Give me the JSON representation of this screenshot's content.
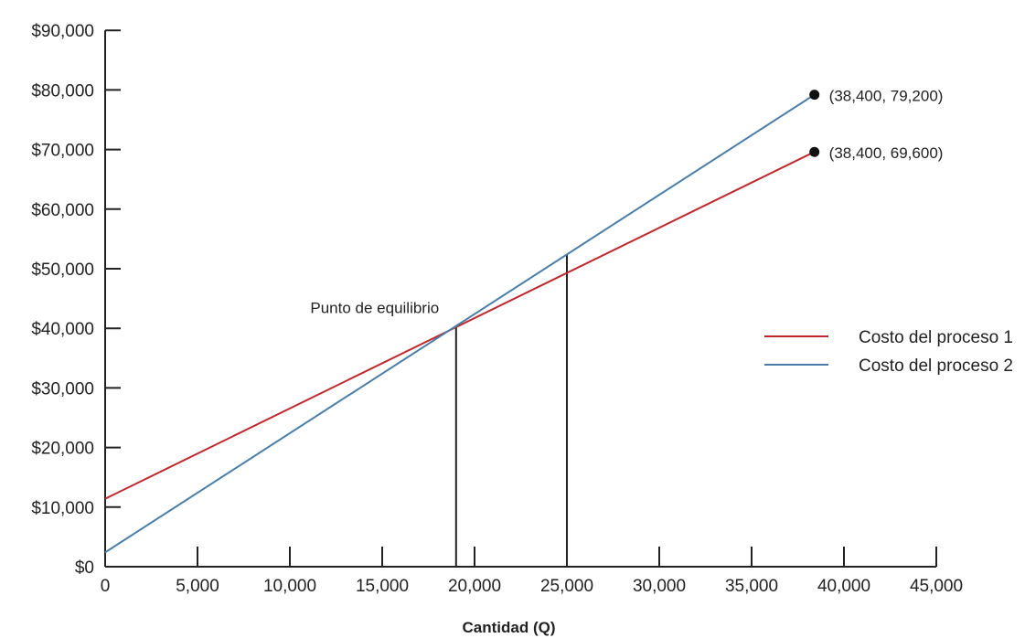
{
  "chart_data": {
    "type": "line",
    "title": "",
    "xlabel": "Cantidad (Q)",
    "ylabel": "",
    "xlim": [
      0,
      45000
    ],
    "ylim": [
      0,
      90000
    ],
    "x_ticks": [
      0,
      5000,
      10000,
      15000,
      20000,
      25000,
      30000,
      35000,
      40000,
      45000
    ],
    "x_tick_labels": [
      "0",
      "5,000",
      "10,000",
      "15,000",
      "20,000",
      "25,000",
      "30,000",
      "35,000",
      "40,000",
      "45,000"
    ],
    "y_ticks": [
      0,
      10000,
      20000,
      30000,
      40000,
      50000,
      60000,
      70000,
      80000,
      90000
    ],
    "y_tick_labels": [
      "$0",
      "$10,000",
      "$20,000",
      "$30,000",
      "$40,000",
      "$50,000",
      "$60,000",
      "$70,000",
      "$80,000",
      "$90,000"
    ],
    "grid": false,
    "legend_position": "right",
    "series": [
      {
        "name": "Costo del proceso 1",
        "color": "#c0282d",
        "x": [
          0,
          38400
        ],
        "y": [
          11400,
          69600
        ]
      },
      {
        "name": "Costo del proceso 2",
        "color": "#4a7ea8",
        "x": [
          0,
          38400
        ],
        "y": [
          2400,
          79200
        ]
      }
    ],
    "points": [
      {
        "x": 38400,
        "y": 79200,
        "label": "(38,400, 79,200)"
      },
      {
        "x": 38400,
        "y": 69600,
        "label": "(38,400, 69,600)"
      }
    ],
    "vertical_lines": [
      {
        "x": 19000,
        "y_top": 40400
      },
      {
        "x": 25000,
        "y_top": 52400
      }
    ],
    "annotations": [
      {
        "text": "Punto de equilibrio",
        "x": 19000,
        "y": 40400
      }
    ]
  }
}
